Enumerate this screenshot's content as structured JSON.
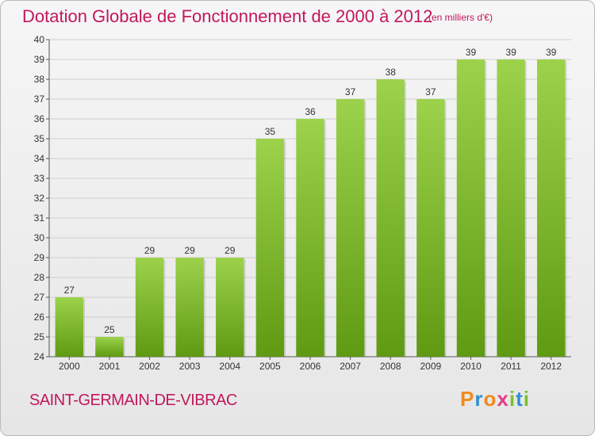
{
  "title": "Dotation Globale de Fonctionnement de 2000 à 2012",
  "subtitle": "(en milliers d'€)",
  "commune": "SAINT-GERMAIN-DE-VIBRAC",
  "logo": {
    "letters": [
      "P",
      "r",
      "o",
      "x",
      "i",
      "t",
      "i"
    ],
    "colors": [
      "#ef8a1e",
      "#2f8fd3",
      "#ef8a1e",
      "#e63a8a",
      "#7cbf2e",
      "#2f8fd3",
      "#7cbf2e"
    ]
  },
  "colors": {
    "bar_top": "#9cd24c",
    "bar_bottom": "#5f9a12",
    "text": "#c2185b",
    "grid": "#cfcfcf"
  },
  "chart_data": {
    "type": "bar",
    "categories": [
      "2000",
      "2001",
      "2002",
      "2003",
      "2004",
      "2005",
      "2006",
      "2007",
      "2008",
      "2009",
      "2010",
      "2011",
      "2012"
    ],
    "values": [
      27,
      25,
      29,
      29,
      29,
      35,
      36,
      37,
      38,
      37,
      39,
      39,
      39
    ],
    "ylim": [
      24,
      40
    ],
    "yticks": [
      24,
      25,
      26,
      27,
      28,
      29,
      30,
      31,
      32,
      33,
      34,
      35,
      36,
      37,
      38,
      39,
      40
    ],
    "grid": true
  }
}
